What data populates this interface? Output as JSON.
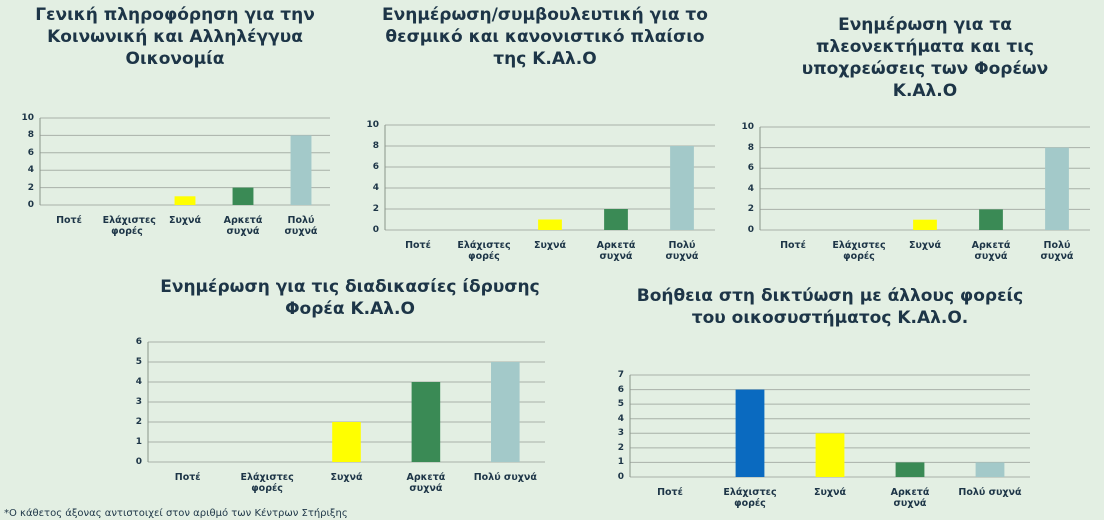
{
  "chart_data": [
    {
      "type": "bar",
      "title": "Γενική πληροφόρηση για την Κοινωνική και Αλληλέγγυα Οικονομία",
      "categories": [
        "Ποτέ",
        "Ελάχιστες φορές",
        "Συχνά",
        "Αρκετά συχνά",
        "Πολύ συχνά"
      ],
      "values": [
        0,
        0,
        1,
        2,
        8
      ],
      "colors": [
        "#0a6ac0",
        "#0a6ac0",
        "#ffff00",
        "#3a8a55",
        "#a3c9c9"
      ],
      "ylim": [
        0,
        10
      ],
      "yticks": [
        0,
        2,
        4,
        6,
        8,
        10
      ],
      "grid": true
    },
    {
      "type": "bar",
      "title": "Ενημέρωση/συμβουλευτική για το θεσμικό και κανονιστικό πλαίσιο της Κ.Αλ.Ο",
      "categories": [
        "Ποτέ",
        "Ελάχιστες φορές",
        "Συχνά",
        "Αρκετά συχνά",
        "Πολύ συχνά"
      ],
      "values": [
        0,
        0,
        1,
        2,
        8
      ],
      "colors": [
        "#0a6ac0",
        "#0a6ac0",
        "#ffff00",
        "#3a8a55",
        "#a3c9c9"
      ],
      "ylim": [
        0,
        10
      ],
      "yticks": [
        0,
        2,
        4,
        6,
        8,
        10
      ],
      "grid": true
    },
    {
      "type": "bar",
      "title": "Ενημέρωση για τα πλεονεκτήματα και τις υποχρεώσεις των Φορέων Κ.Αλ.Ο",
      "categories": [
        "Ποτέ",
        "Ελάχιστες φορές",
        "Συχνά",
        "Αρκετά συχνά",
        "Πολύ συχνά"
      ],
      "values": [
        0,
        0,
        1,
        2,
        8
      ],
      "colors": [
        "#0a6ac0",
        "#0a6ac0",
        "#ffff00",
        "#3a8a55",
        "#a3c9c9"
      ],
      "ylim": [
        0,
        10
      ],
      "yticks": [
        0,
        2,
        4,
        6,
        8,
        10
      ],
      "grid": true
    },
    {
      "type": "bar",
      "title": "Ενημέρωση για τις διαδικασίες ίδρυσης Φορέα Κ.Αλ.Ο",
      "categories": [
        "Ποτέ",
        "Ελάχιστες φορές",
        "Συχνά",
        "Αρκετά συχνά",
        "Πολύ συχνά"
      ],
      "values": [
        0,
        0,
        2,
        4,
        5
      ],
      "colors": [
        "#0a6ac0",
        "#0a6ac0",
        "#ffff00",
        "#3a8a55",
        "#a3c9c9"
      ],
      "ylim": [
        0,
        6
      ],
      "yticks": [
        0,
        1,
        2,
        3,
        4,
        5,
        6
      ],
      "grid": true
    },
    {
      "type": "bar",
      "title": "Βοήθεια στη δικτύωση με άλλους φορείς του οικοσυστήματος Κ.Αλ.Ο.",
      "categories": [
        "Ποτέ",
        "Ελάχιστες φορές",
        "Συχνά",
        "Αρκετά συχνά",
        "Πολύ συχνά"
      ],
      "values": [
        0,
        6,
        3,
        1,
        1
      ],
      "colors": [
        "#0a6ac0",
        "#0a6ac0",
        "#ffff00",
        "#3a8a55",
        "#a3c9c9"
      ],
      "ylim": [
        0,
        7
      ],
      "yticks": [
        0,
        1,
        2,
        3,
        4,
        5,
        6,
        7
      ],
      "grid": true
    }
  ],
  "footnote": "*Ο κάθετος άξονας αντιστοιχεί στον αριθμό των Κέντρων Στήριξης"
}
